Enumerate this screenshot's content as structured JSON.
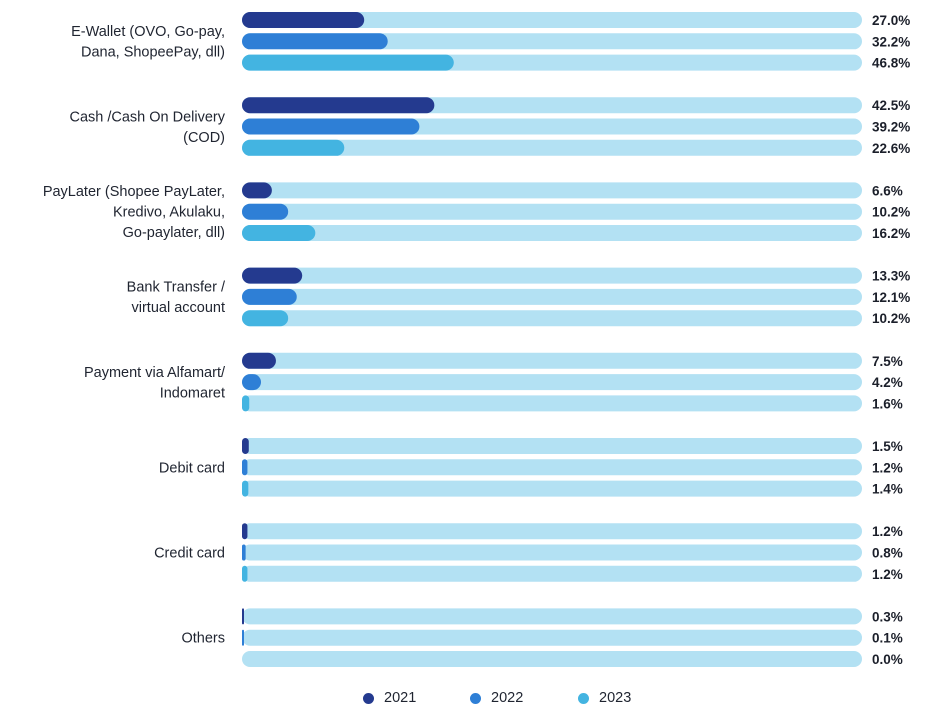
{
  "chart_data": {
    "type": "bar",
    "orientation": "horizontal",
    "categories": [
      [
        "E-Wallet (OVO, Go-pay,",
        "Dana, ShopeePay, dll)"
      ],
      [
        "Cash /Cash On Delivery",
        "(COD)"
      ],
      [
        "PayLater (Shopee PayLater,",
        "Kredivo, Akulaku,",
        "Go-paylater, dll)"
      ],
      [
        "Bank Transfer /",
        "virtual account"
      ],
      [
        "Payment via Alfamart/",
        "Indomaret"
      ],
      [
        "Debit card"
      ],
      [
        "Credit card"
      ],
      [
        "Others"
      ]
    ],
    "series": [
      {
        "name": "2021",
        "color": "#243a8f",
        "values": [
          27.0,
          42.5,
          6.6,
          13.3,
          7.5,
          1.5,
          1.2,
          0.3
        ],
        "labels": [
          "27.0%",
          "42.5%",
          "6.6%",
          "13.3%",
          "7.5%",
          "1.5%",
          "1.2%",
          "0.3%"
        ]
      },
      {
        "name": "2022",
        "color": "#2e7fd6",
        "values": [
          32.2,
          39.2,
          10.2,
          12.1,
          4.2,
          1.2,
          0.8,
          0.1
        ],
        "labels": [
          "32.2%",
          "39.2%",
          "10.2%",
          "12.1%",
          "4.2%",
          "1.2%",
          "0.8%",
          "0.1%"
        ]
      },
      {
        "name": "2023",
        "color": "#43b4e1",
        "values": [
          46.8,
          22.6,
          16.2,
          10.2,
          1.6,
          1.4,
          1.2,
          0.0
        ],
        "labels": [
          "46.8%",
          "22.6%",
          "16.2%",
          "10.2%",
          "1.6%",
          "1.4%",
          "1.2%",
          "0.0%"
        ]
      }
    ],
    "track_color": "#b3e1f3",
    "xlim": [
      0,
      137
    ],
    "legend_position": "bottom-center",
    "grid": false
  }
}
